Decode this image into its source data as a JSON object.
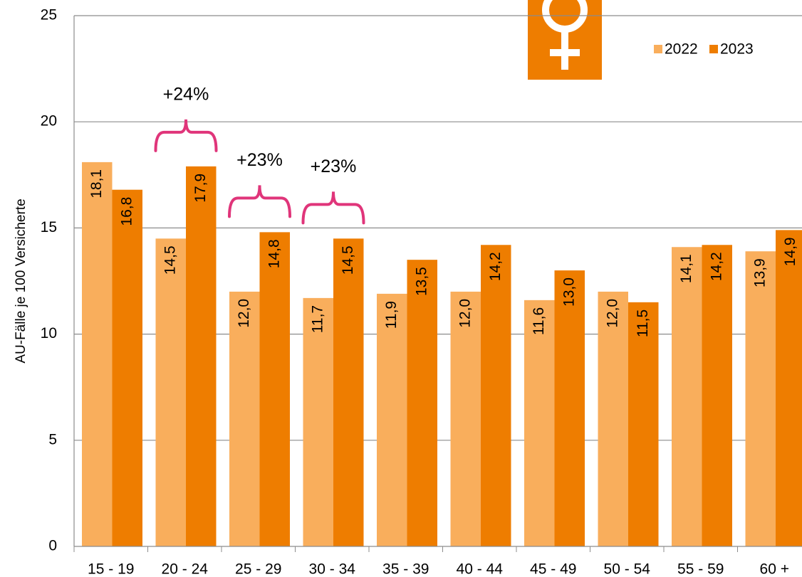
{
  "chart_data": {
    "type": "bar",
    "ylabel": "AU-Fälle je 100 Versicherte",
    "categories": [
      "15 - 19",
      "20 - 24",
      "25 - 29",
      "30 - 34",
      "35 - 39",
      "40 - 44",
      "45 - 49",
      "50 - 54",
      "55 - 59",
      "60 +"
    ],
    "series": [
      {
        "name": "2022",
        "color": "#f9ae5c",
        "values": [
          18.1,
          14.5,
          12.0,
          11.7,
          11.9,
          12.0,
          11.6,
          12.0,
          14.1,
          13.9
        ],
        "value_labels": [
          "18,1",
          "14,5",
          "12,0",
          "11,7",
          "11,9",
          "12,0",
          "11,6",
          "12,0",
          "14,1",
          "13,9"
        ]
      },
      {
        "name": "2023",
        "color": "#ee7d00",
        "values": [
          16.8,
          17.9,
          14.8,
          14.5,
          13.5,
          14.2,
          13.0,
          11.5,
          14.2,
          14.9
        ],
        "value_labels": [
          "16,8",
          "17,9",
          "14,8",
          "14,5",
          "13,5",
          "14,2",
          "13,0",
          "11,5",
          "14,2",
          "14,9"
        ]
      }
    ],
    "ylim": [
      0,
      25
    ],
    "yticks": [
      0,
      5,
      10,
      15,
      20,
      25
    ],
    "grid": true,
    "legend": "upper right",
    "annotations": [
      {
        "text": "+24%",
        "category": "20 - 24"
      },
      {
        "text": "+23%",
        "category": "25 - 29"
      },
      {
        "text": "+23%",
        "category": "30 - 34"
      }
    ]
  }
}
